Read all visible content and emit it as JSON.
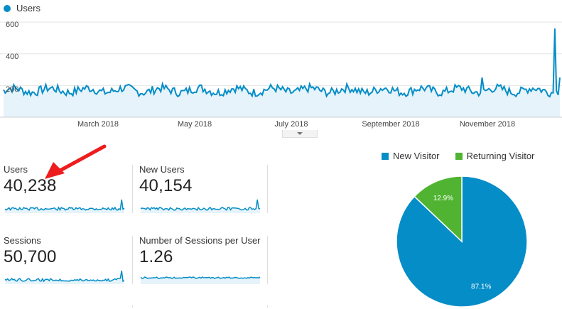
{
  "legend": {
    "series_name": "Users",
    "color": "#058dc7"
  },
  "chart_data": [
    {
      "type": "line",
      "series": [
        {
          "name": "Users",
          "color": "#058dc7"
        }
      ],
      "y_ticks": [
        "600",
        "400",
        "200"
      ],
      "ylim": [
        0,
        650
      ],
      "x_ticks": [
        "March 2018",
        "May 2018",
        "July 2018",
        "September 2018",
        "November 2018"
      ],
      "baseline": 170,
      "spike": {
        "value": 560,
        "position": "near end of period"
      }
    },
    {
      "type": "pie",
      "legend": [
        "New Visitor",
        "Returning Visitor"
      ],
      "values": [
        87.1,
        12.9
      ],
      "labels": [
        "87.1%",
        "12.9%"
      ],
      "colors": [
        "#058dc7",
        "#50b432"
      ]
    }
  ],
  "metrics": [
    {
      "label": "Users",
      "value": "40,238"
    },
    {
      "label": "New Users",
      "value": "40,154"
    },
    {
      "label": "Sessions",
      "value": "50,700"
    },
    {
      "label": "Number of Sessions per User",
      "value": "1.26"
    }
  ]
}
